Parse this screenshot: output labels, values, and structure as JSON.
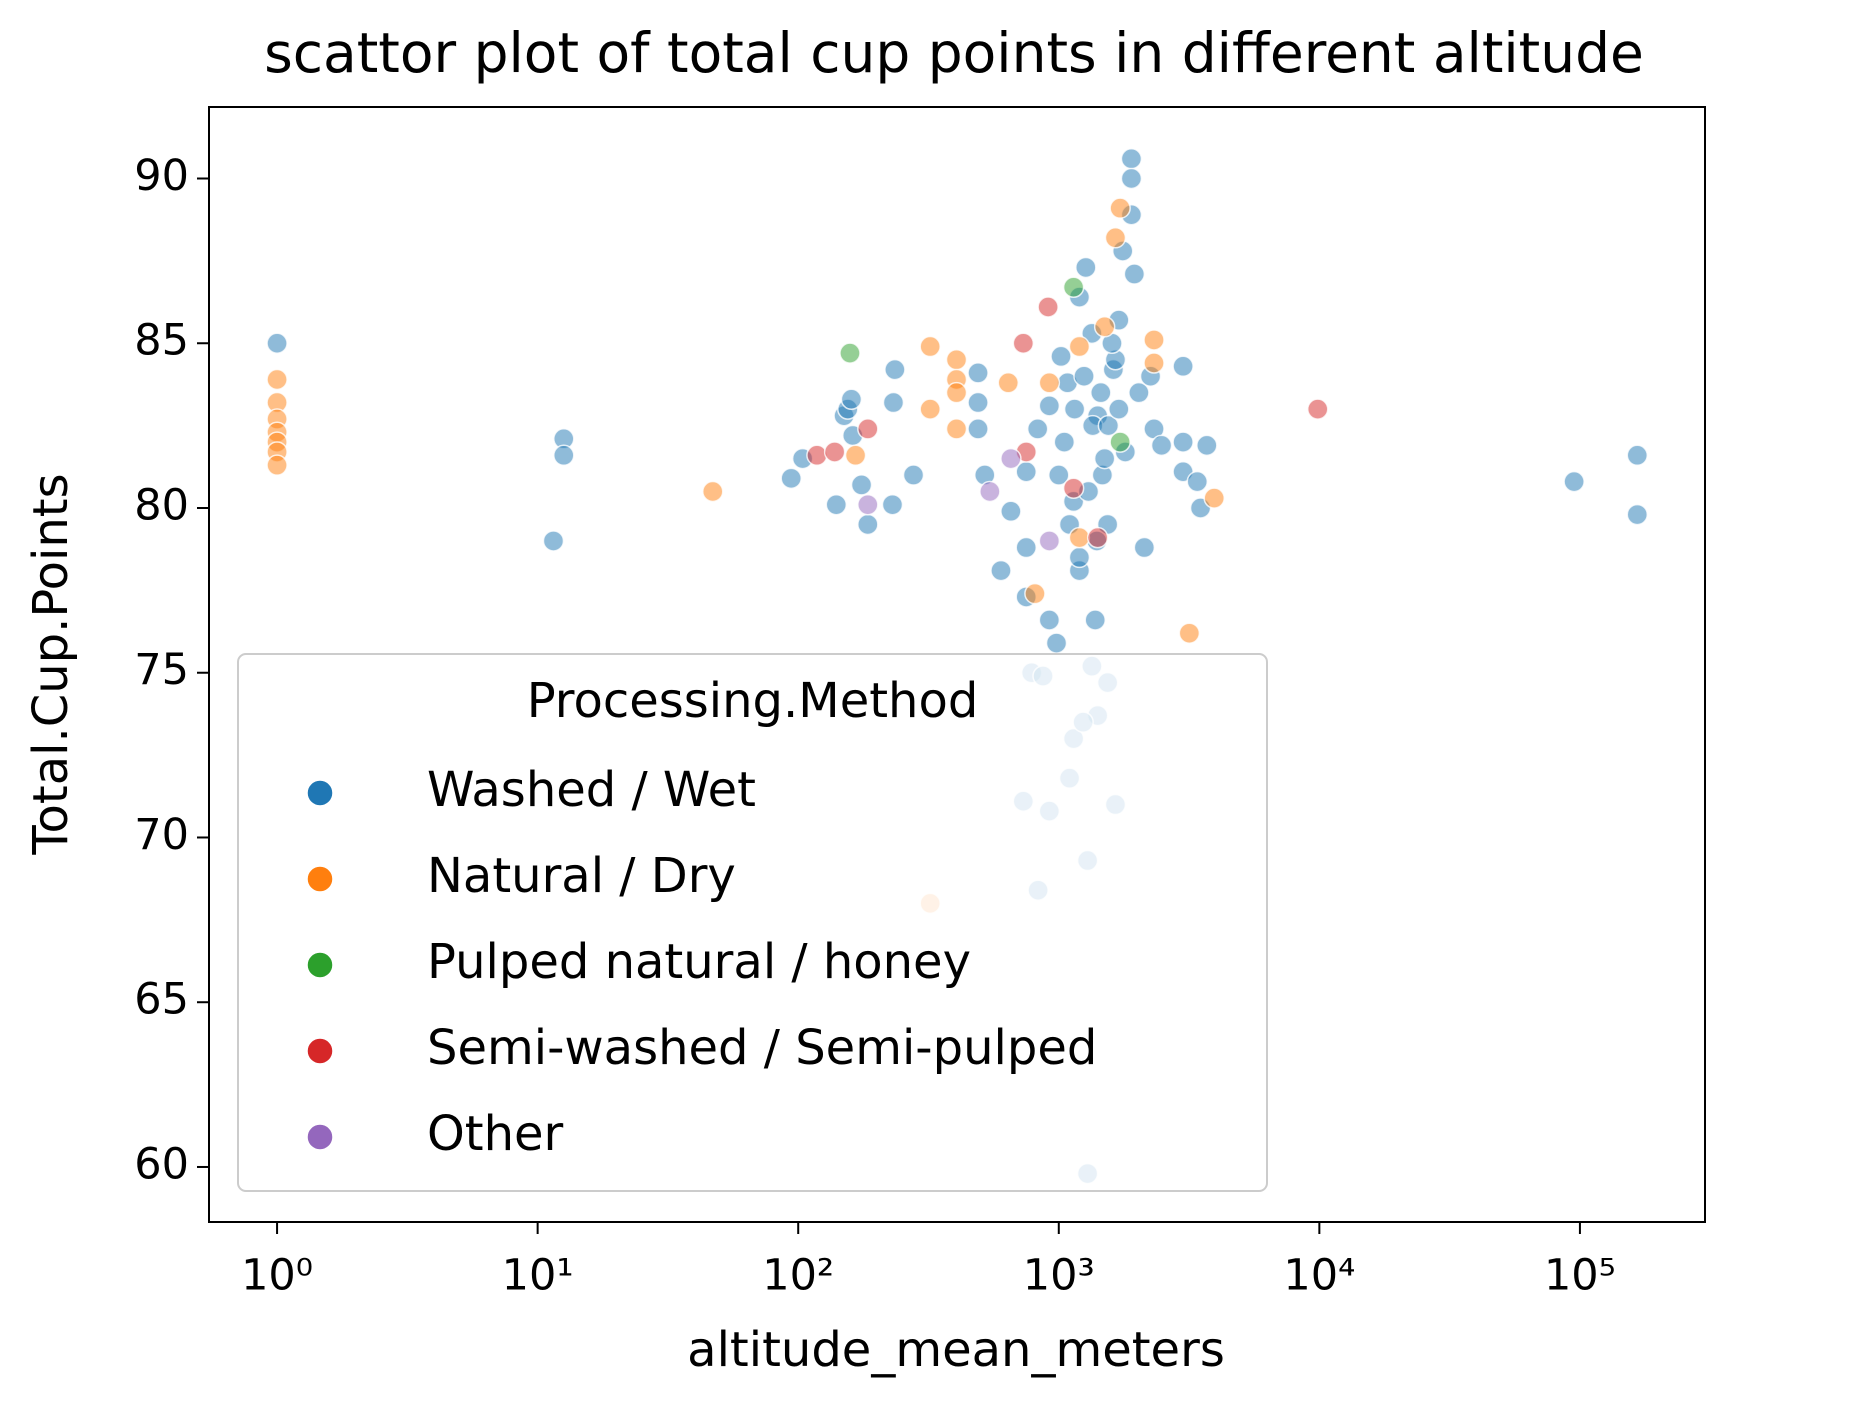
{
  "chart_data": {
    "type": "scatter",
    "title": "scattor plot of total cup points in different altitude",
    "x_label": "altitude_mean_meters",
    "y_label": "Total.Cup.Points",
    "x_log": true,
    "xlim": [
      0.548,
      302000
    ],
    "ylim": [
      58.33,
      92.17
    ],
    "xticks": [
      {
        "value": 1,
        "label": "10⁰"
      },
      {
        "value": 10,
        "label": "10¹"
      },
      {
        "value": 100,
        "label": "10²"
      },
      {
        "value": 1000,
        "label": "10³"
      },
      {
        "value": 10000,
        "label": "10⁴"
      },
      {
        "value": 100000,
        "label": "10⁵"
      }
    ],
    "yticks": [
      60,
      65,
      70,
      75,
      80,
      85,
      90
    ],
    "legend_title": "Processing.Method",
    "legend_position": "lower left",
    "marker_alpha": 0.5,
    "series": [
      {
        "name": "Washed / Wet",
        "color": "#1f77b4",
        "x": [
          1,
          11.5,
          12.6,
          12.6,
          94,
          104,
          140,
          150,
          155,
          160,
          162,
          185,
          175,
          235,
          232,
          277,
          230,
          490,
          490,
          490,
          520,
          600,
          655,
          750,
          750,
          750,
          830,
          920,
          920,
          980,
          1020,
          1080,
          1140,
          1200,
          1200,
          1270,
          1340,
          1380,
          1410,
          1340,
          1410,
          1470,
          1540,
          1620,
          1700,
          1800,
          1900,
          1900,
          1900,
          1760,
          1950,
          2030,
          2130,
          2250,
          2320,
          2480,
          3000,
          3000,
          3000,
          3400,
          3700,
          3500,
          95000,
          166000,
          166000,
          731,
          787,
          1140,
          1100,
          833,
          920,
          1650,
          1290,
          1290,
          870,
          1540,
          1240,
          1050,
          1150,
          1250,
          1350,
          1450,
          1550,
          1650,
          1100,
          1300,
          1500,
          1700,
          1000,
          1200,
          1400,
          1600
        ],
        "values": [
          85.0,
          79.0,
          82.1,
          81.6,
          80.9,
          81.5,
          80.1,
          82.8,
          83.0,
          83.3,
          82.2,
          79.5,
          80.7,
          84.2,
          83.2,
          81.0,
          80.1,
          84.1,
          83.2,
          82.4,
          81.0,
          78.1,
          79.9,
          81.1,
          78.8,
          77.3,
          82.4,
          83.1,
          76.6,
          75.9,
          84.6,
          83.8,
          80.2,
          86.4,
          78.1,
          87.3,
          75.2,
          76.6,
          73.7,
          85.3,
          82.8,
          81.0,
          79.5,
          84.2,
          85.7,
          81.7,
          90.6,
          90.0,
          88.9,
          87.8,
          87.1,
          83.5,
          78.8,
          84.0,
          82.4,
          81.9,
          84.3,
          82.0,
          81.1,
          80.8,
          81.9,
          80.0,
          80.8,
          81.6,
          79.8,
          71.1,
          75.0,
          73.0,
          71.8,
          68.4,
          70.8,
          71.0,
          69.3,
          59.8,
          74.9,
          74.7,
          73.5,
          82.0,
          83.0,
          84.0,
          82.5,
          83.5,
          82.5,
          84.5,
          79.5,
          80.5,
          81.5,
          83.0,
          81.0,
          78.5,
          79.0,
          85.0
        ]
      },
      {
        "name": "Natural / Dry",
        "color": "#ff7f0e",
        "x": [
          1,
          1,
          1,
          1,
          1,
          1,
          1,
          47,
          166,
          321,
          321,
          321,
          405,
          405,
          405,
          405,
          640,
          810,
          920,
          1200,
          1650,
          1720,
          2320,
          2320,
          3170,
          3950,
          1200,
          1500
        ],
        "values": [
          83.9,
          83.2,
          82.7,
          82.3,
          82.0,
          81.7,
          81.3,
          80.5,
          81.6,
          84.9,
          83.0,
          68.0,
          84.5,
          83.9,
          83.5,
          82.4,
          83.8,
          77.4,
          83.8,
          84.9,
          88.2,
          89.1,
          85.1,
          84.4,
          76.2,
          80.3,
          79.1,
          85.5
        ]
      },
      {
        "name": "Pulped natural / honey",
        "color": "#2ca02c",
        "x": [
          158,
          1140,
          1720
        ],
        "values": [
          84.7,
          86.7,
          82.0
        ]
      },
      {
        "name": "Semi-washed / Semi-pulped",
        "color": "#d62728",
        "x": [
          9860,
          731,
          910,
          185,
          118,
          138,
          750,
          1140,
          1410
        ],
        "values": [
          83.0,
          85.0,
          86.1,
          82.4,
          81.6,
          81.7,
          81.7,
          80.6,
          79.1
        ]
      },
      {
        "name": "Other",
        "color": "#9467bd",
        "x": [
          185,
          544,
          655,
          920
        ],
        "values": [
          80.1,
          80.5,
          81.5,
          79.0
        ]
      }
    ]
  }
}
